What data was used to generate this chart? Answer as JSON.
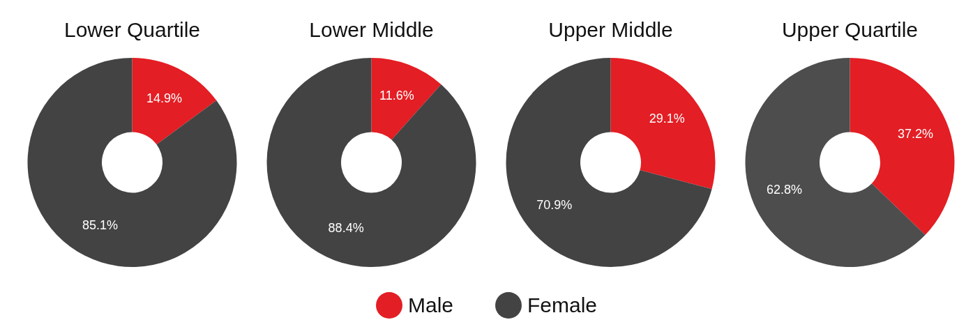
{
  "chart_data": [
    {
      "type": "donut",
      "title": "Lower Quartile",
      "categories": [
        "Male",
        "Female"
      ],
      "values": [
        14.9,
        85.1
      ],
      "colors": [
        "#e31e24",
        "#434343"
      ],
      "value_labels": [
        "14.9%",
        "85.1%"
      ],
      "legend": "bottom"
    },
    {
      "type": "donut",
      "title": "Lower Middle",
      "categories": [
        null,
        null
      ],
      "values": [
        11.6,
        88.4
      ],
      "colors": [
        "#e31e24",
        "#434343"
      ],
      "value_labels": [
        "11.6%",
        "88.4%"
      ]
    },
    {
      "type": "donut",
      "title": "Upper Middle",
      "categories": [
        null,
        null
      ],
      "values": [
        29.1,
        70.9
      ],
      "colors": [
        "#e31e24",
        "#434343"
      ],
      "value_labels": [
        "29.1%",
        "70.9%"
      ]
    },
    {
      "type": "donut",
      "title": "Upper Quartile",
      "categories": [
        null,
        null
      ],
      "values": [
        37.2,
        62.8
      ],
      "colors": [
        "#e31e24",
        "#4d4d4d"
      ],
      "value_labels": [
        "37.2%",
        "62.8%"
      ]
    }
  ]
}
